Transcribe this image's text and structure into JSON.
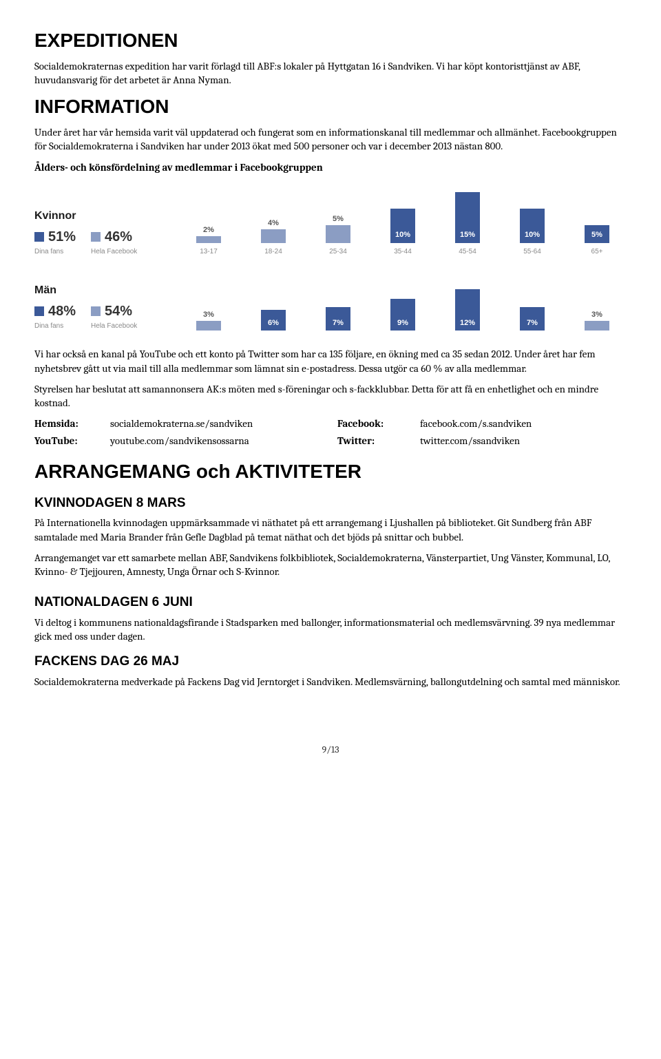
{
  "h_expeditionen": "EXPEDITIONEN",
  "p_expeditionen": "Socialdemokraternas expedition har varit förlagd till ABF:s lokaler på Hyttgatan 16 i Sandviken. Vi har köpt kontoristtjänst av ABF, huvudansvarig för det arbetet är Anna Nyman.",
  "h_information": "INFORMATION",
  "p_information": "Under året har vår hemsida varit väl uppdaterad och fungerat som en informationskanal till medlemmar och allmänhet.  Facebookgruppen för Socialdemokraterna i Sandviken har under 2013 ökat med 500 personer och var i december 2013 nästan 800.",
  "chart_title": "Ålders- och könsfördelning av medlemmar i Facebookgruppen",
  "chart": {
    "color_dark": "#3b5998",
    "color_light": "#8b9dc3",
    "legend": {
      "kvinnor": {
        "title": "Kvinnor",
        "fans_pct": "51%",
        "fb_pct": "46%",
        "fans_label": "Dina fans",
        "fb_label": "Hela Facebook"
      },
      "man": {
        "title": "Män",
        "fans_pct": "48%",
        "fb_pct": "54%",
        "fans_label": "Dina fans",
        "fb_label": "Hela Facebook"
      }
    },
    "age_categories": [
      "13-17",
      "18-24",
      "25-34",
      "35-44",
      "45-54",
      "55-64",
      "65+"
    ],
    "kvinnor_values": [
      "",
      "2%",
      "4%",
      "5%",
      "10%",
      "15%",
      "10%",
      "5%"
    ],
    "kvinnor_heights": [
      0,
      10,
      20,
      26,
      50,
      74,
      50,
      26
    ],
    "kvinnor_inside": [
      false,
      false,
      false,
      false,
      true,
      true,
      true,
      true
    ],
    "man_values": [
      "",
      "3%",
      "6%",
      "7%",
      "9%",
      "12%",
      "7%",
      "3%"
    ],
    "man_heights": [
      0,
      14,
      30,
      34,
      46,
      60,
      34,
      14
    ],
    "man_inside": [
      false,
      false,
      true,
      true,
      true,
      true,
      true,
      false
    ]
  },
  "p_youtube": "Vi har också en kanal på YouTube och ett konto på Twitter som har ca 135 följare, en ökning med ca 35 sedan 2012. Under året har fem nyhetsbrev gått ut via mail till alla medlemmar som lämnat sin e-postadress. Dessa utgör ca 60 % av alla medlemmar.",
  "p_styrelsen": "Styrelsen har beslutat att samannonsera AK:s möten med s-föreningar och s-fackklubbar. Detta för att få en enhetlighet och en mindre kostnad.",
  "links": {
    "hemsida_l": "Hemsida:",
    "hemsida_v": "socialdemokraterna.se/sandviken",
    "facebook_l": "Facebook:",
    "facebook_v": "facebook.com/s.sandviken",
    "youtube_l": "YouTube:",
    "youtube_v": "youtube.com/sandvikensossarna",
    "twitter_l": "Twitter:",
    "twitter_v": "twitter.com/ssandviken"
  },
  "h_arrangemang": "ARRANGEMANG och AKTIVITETER",
  "h_kvinnodagen": "KVINNODAGEN 8 MARS",
  "p_kvinnodagen1": "På Internationella kvinnodagen uppmärksammade vi näthatet på ett arrangemang i Ljushallen på biblioteket. Git Sundberg från ABF samtalade med Maria Brander från Gefle Dagblad på temat näthat och det bjöds på snittar och bubbel.",
  "p_kvinnodagen2": "Arrangemanget var ett samarbete mellan ABF, Sandvikens folkbibliotek, Socialdemokraterna, Vänsterpartiet, Ung Vänster, Kommunal, LO, Kvinno- & Tjejjouren, Amnesty, Unga Örnar och S-Kvinnor.",
  "h_nationaldagen": "NATIONALDAGEN 6 JUNI",
  "p_nationaldagen": "Vi deltog i kommunens nationaldagsfirande i Stadsparken med ballonger, informationsmaterial och medlemsvärvning. 39 nya medlemmar gick med oss under dagen.",
  "h_fackens": "FACKENS DAG 26 MAJ",
  "p_fackens": "Socialdemokraterna medverkade på Fackens Dag vid Jerntorget i Sandviken. Medlemsvärning, ballongutdelning och samtal med människor.",
  "pagefoot": "9/13"
}
